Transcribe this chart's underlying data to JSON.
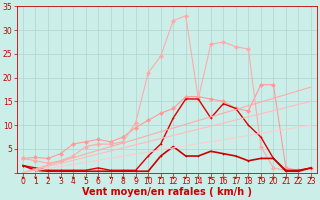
{
  "background_color": "#cceee8",
  "grid_color": "#aacccc",
  "xlabel": "Vent moyen/en rafales ( km/h )",
  "xlabel_color": "#cc0000",
  "xlabel_fontsize": 7,
  "tick_color": "#cc0000",
  "tick_fontsize": 5.5,
  "xlim": [
    -0.5,
    23.5
  ],
  "ylim": [
    0,
    35
  ],
  "yticks": [
    0,
    5,
    10,
    15,
    20,
    25,
    30,
    35
  ],
  "xticks": [
    0,
    1,
    2,
    3,
    4,
    5,
    6,
    7,
    8,
    9,
    10,
    11,
    12,
    13,
    14,
    15,
    16,
    17,
    18,
    19,
    20,
    21,
    22,
    23
  ],
  "x": [
    0,
    1,
    2,
    3,
    4,
    5,
    6,
    7,
    8,
    9,
    10,
    11,
    12,
    13,
    14,
    15,
    16,
    17,
    18,
    19,
    20,
    21,
    22,
    23
  ],
  "series": [
    {
      "y": [
        3.0,
        3.2,
        3.0,
        4.0,
        6.0,
        6.5,
        7.0,
        6.5,
        7.5,
        9.5,
        11.0,
        12.5,
        13.5,
        16.0,
        16.0,
        15.5,
        15.0,
        13.5,
        13.0,
        18.5,
        18.5,
        1.0,
        0.5,
        1.0
      ],
      "color": "#ff9999",
      "linewidth": 0.8,
      "markersize": 2.0,
      "marker": "D"
    },
    {
      "y": [
        3.0,
        2.5,
        2.0,
        2.5,
        3.5,
        5.5,
        6.0,
        6.0,
        6.5,
        10.5,
        21.0,
        24.5,
        32.0,
        33.0,
        15.5,
        27.0,
        27.5,
        26.5,
        26.0,
        5.5,
        1.0,
        0.5,
        0.5,
        1.0
      ],
      "color": "#ffaaaa",
      "linewidth": 0.8,
      "markersize": 2.0,
      "marker": "D"
    },
    {
      "y": [
        1.5,
        1.0,
        0.5,
        0.5,
        0.5,
        0.5,
        1.0,
        0.5,
        0.5,
        0.5,
        3.5,
        6.0,
        11.5,
        15.5,
        15.5,
        11.5,
        14.5,
        13.5,
        10.0,
        7.5,
        3.0,
        0.5,
        0.5,
        1.0
      ],
      "color": "#dd0000",
      "linewidth": 1.0,
      "markersize": 2.0,
      "marker": "+"
    },
    {
      "y": [
        1.5,
        0.5,
        0.3,
        0.3,
        0.3,
        0.3,
        0.3,
        0.3,
        0.3,
        0.3,
        0.3,
        3.5,
        5.5,
        3.5,
        3.5,
        4.5,
        4.0,
        3.5,
        2.5,
        3.0,
        3.0,
        0.3,
        0.3,
        1.0
      ],
      "color": "#cc0000",
      "linewidth": 1.2,
      "markersize": 2.0,
      "marker": "+"
    },
    {
      "y": [
        0.0,
        0.43,
        0.87,
        1.3,
        1.74,
        2.17,
        2.61,
        3.04,
        3.48,
        3.91,
        4.35,
        4.78,
        5.22,
        5.65,
        6.09,
        6.52,
        6.96,
        7.39,
        7.83,
        8.26,
        8.7,
        9.13,
        9.57,
        10.0
      ],
      "color": "#ffcccc",
      "linewidth": 0.8,
      "markersize": 0,
      "marker": null
    },
    {
      "y": [
        0.0,
        0.78,
        1.57,
        2.35,
        3.13,
        3.91,
        4.7,
        5.48,
        6.26,
        7.04,
        7.83,
        8.61,
        9.39,
        10.17,
        10.96,
        11.74,
        12.52,
        13.3,
        14.09,
        14.87,
        15.65,
        16.43,
        17.22,
        18.0
      ],
      "color": "#ffaaaa",
      "linewidth": 0.8,
      "markersize": 0,
      "marker": null
    },
    {
      "y": [
        0.0,
        0.65,
        1.3,
        1.96,
        2.61,
        3.26,
        3.91,
        4.57,
        5.22,
        5.87,
        6.52,
        7.17,
        7.83,
        8.48,
        9.13,
        9.78,
        10.43,
        11.09,
        11.74,
        12.39,
        13.04,
        13.7,
        14.35,
        15.0
      ],
      "color": "#ffbbbb",
      "linewidth": 0.8,
      "markersize": 0,
      "marker": null
    }
  ]
}
